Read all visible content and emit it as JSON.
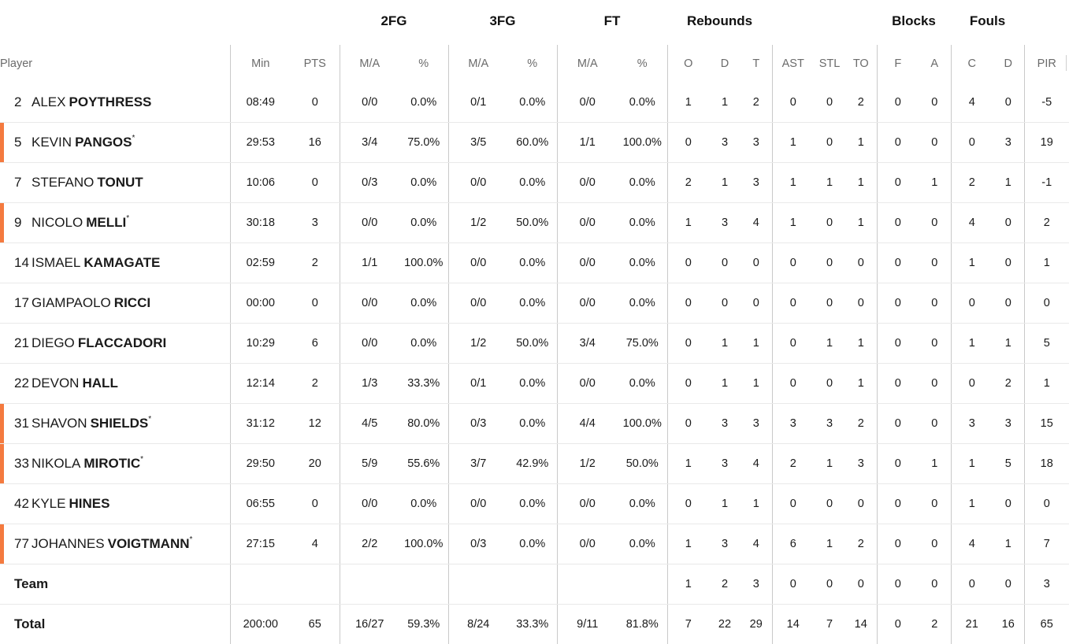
{
  "groups": {
    "fg2": "2FG",
    "fg3": "3FG",
    "ft": "FT",
    "rebounds": "Rebounds",
    "blocks": "Blocks",
    "fouls": "Fouls"
  },
  "columns": {
    "player": "Player",
    "min": "Min",
    "pts": "PTS",
    "fg2_ma": "M/A",
    "fg2_pct": "%",
    "fg3_ma": "M/A",
    "fg3_pct": "%",
    "ft_ma": "M/A",
    "ft_pct": "%",
    "reb_o": "O",
    "reb_d": "D",
    "reb_t": "T",
    "ast": "AST",
    "stl": "STL",
    "to": "TO",
    "blk_f": "F",
    "blk_a": "A",
    "foul_c": "C",
    "foul_d": "D",
    "pir": "PIR"
  },
  "players": [
    {
      "num": "2",
      "first": "ALEX",
      "last": "POYTHRESS",
      "starter": "",
      "min": "08:49",
      "pts": "0",
      "fg2_ma": "0/0",
      "fg2_pct": "0.0%",
      "fg3_ma": "0/1",
      "fg3_pct": "0.0%",
      "ft_ma": "0/0",
      "ft_pct": "0.0%",
      "reb_o": "1",
      "reb_d": "1",
      "reb_t": "2",
      "ast": "0",
      "stl": "0",
      "to": "2",
      "blk_f": "0",
      "blk_a": "0",
      "foul_c": "4",
      "foul_d": "0",
      "pir": "-5"
    },
    {
      "num": "5",
      "first": "KEVIN",
      "last": "PANGOS",
      "starter": "*",
      "min": "29:53",
      "pts": "16",
      "fg2_ma": "3/4",
      "fg2_pct": "75.0%",
      "fg3_ma": "3/5",
      "fg3_pct": "60.0%",
      "ft_ma": "1/1",
      "ft_pct": "100.0%",
      "reb_o": "0",
      "reb_d": "3",
      "reb_t": "3",
      "ast": "1",
      "stl": "0",
      "to": "1",
      "blk_f": "0",
      "blk_a": "0",
      "foul_c": "0",
      "foul_d": "3",
      "pir": "19"
    },
    {
      "num": "7",
      "first": "STEFANO",
      "last": "TONUT",
      "starter": "",
      "min": "10:06",
      "pts": "0",
      "fg2_ma": "0/3",
      "fg2_pct": "0.0%",
      "fg3_ma": "0/0",
      "fg3_pct": "0.0%",
      "ft_ma": "0/0",
      "ft_pct": "0.0%",
      "reb_o": "2",
      "reb_d": "1",
      "reb_t": "3",
      "ast": "1",
      "stl": "1",
      "to": "1",
      "blk_f": "0",
      "blk_a": "1",
      "foul_c": "2",
      "foul_d": "1",
      "pir": "-1"
    },
    {
      "num": "9",
      "first": "NICOLO",
      "last": "MELLI",
      "starter": "*",
      "min": "30:18",
      "pts": "3",
      "fg2_ma": "0/0",
      "fg2_pct": "0.0%",
      "fg3_ma": "1/2",
      "fg3_pct": "50.0%",
      "ft_ma": "0/0",
      "ft_pct": "0.0%",
      "reb_o": "1",
      "reb_d": "3",
      "reb_t": "4",
      "ast": "1",
      "stl": "0",
      "to": "1",
      "blk_f": "0",
      "blk_a": "0",
      "foul_c": "4",
      "foul_d": "0",
      "pir": "2"
    },
    {
      "num": "14",
      "first": "ISMAEL",
      "last": "KAMAGATE",
      "starter": "",
      "min": "02:59",
      "pts": "2",
      "fg2_ma": "1/1",
      "fg2_pct": "100.0%",
      "fg3_ma": "0/0",
      "fg3_pct": "0.0%",
      "ft_ma": "0/0",
      "ft_pct": "0.0%",
      "reb_o": "0",
      "reb_d": "0",
      "reb_t": "0",
      "ast": "0",
      "stl": "0",
      "to": "0",
      "blk_f": "0",
      "blk_a": "0",
      "foul_c": "1",
      "foul_d": "0",
      "pir": "1"
    },
    {
      "num": "17",
      "first": "GIAMPAOLO",
      "last": "RICCI",
      "starter": "",
      "min": "00:00",
      "pts": "0",
      "fg2_ma": "0/0",
      "fg2_pct": "0.0%",
      "fg3_ma": "0/0",
      "fg3_pct": "0.0%",
      "ft_ma": "0/0",
      "ft_pct": "0.0%",
      "reb_o": "0",
      "reb_d": "0",
      "reb_t": "0",
      "ast": "0",
      "stl": "0",
      "to": "0",
      "blk_f": "0",
      "blk_a": "0",
      "foul_c": "0",
      "foul_d": "0",
      "pir": "0"
    },
    {
      "num": "21",
      "first": "DIEGO",
      "last": "FLACCADORI",
      "starter": "",
      "min": "10:29",
      "pts": "6",
      "fg2_ma": "0/0",
      "fg2_pct": "0.0%",
      "fg3_ma": "1/2",
      "fg3_pct": "50.0%",
      "ft_ma": "3/4",
      "ft_pct": "75.0%",
      "reb_o": "0",
      "reb_d": "1",
      "reb_t": "1",
      "ast": "0",
      "stl": "1",
      "to": "1",
      "blk_f": "0",
      "blk_a": "0",
      "foul_c": "1",
      "foul_d": "1",
      "pir": "5"
    },
    {
      "num": "22",
      "first": "DEVON",
      "last": "HALL",
      "starter": "",
      "min": "12:14",
      "pts": "2",
      "fg2_ma": "1/3",
      "fg2_pct": "33.3%",
      "fg3_ma": "0/1",
      "fg3_pct": "0.0%",
      "ft_ma": "0/0",
      "ft_pct": "0.0%",
      "reb_o": "0",
      "reb_d": "1",
      "reb_t": "1",
      "ast": "0",
      "stl": "0",
      "to": "1",
      "blk_f": "0",
      "blk_a": "0",
      "foul_c": "0",
      "foul_d": "2",
      "pir": "1"
    },
    {
      "num": "31",
      "first": "SHAVON",
      "last": "SHIELDS",
      "starter": "*",
      "min": "31:12",
      "pts": "12",
      "fg2_ma": "4/5",
      "fg2_pct": "80.0%",
      "fg3_ma": "0/3",
      "fg3_pct": "0.0%",
      "ft_ma": "4/4",
      "ft_pct": "100.0%",
      "reb_o": "0",
      "reb_d": "3",
      "reb_t": "3",
      "ast": "3",
      "stl": "3",
      "to": "2",
      "blk_f": "0",
      "blk_a": "0",
      "foul_c": "3",
      "foul_d": "3",
      "pir": "15"
    },
    {
      "num": "33",
      "first": "NIKOLA",
      "last": "MIROTIC",
      "starter": "*",
      "min": "29:50",
      "pts": "20",
      "fg2_ma": "5/9",
      "fg2_pct": "55.6%",
      "fg3_ma": "3/7",
      "fg3_pct": "42.9%",
      "ft_ma": "1/2",
      "ft_pct": "50.0%",
      "reb_o": "1",
      "reb_d": "3",
      "reb_t": "4",
      "ast": "2",
      "stl": "1",
      "to": "3",
      "blk_f": "0",
      "blk_a": "1",
      "foul_c": "1",
      "foul_d": "5",
      "pir": "18"
    },
    {
      "num": "42",
      "first": "KYLE",
      "last": "HINES",
      "starter": "",
      "min": "06:55",
      "pts": "0",
      "fg2_ma": "0/0",
      "fg2_pct": "0.0%",
      "fg3_ma": "0/0",
      "fg3_pct": "0.0%",
      "ft_ma": "0/0",
      "ft_pct": "0.0%",
      "reb_o": "0",
      "reb_d": "1",
      "reb_t": "1",
      "ast": "0",
      "stl": "0",
      "to": "0",
      "blk_f": "0",
      "blk_a": "0",
      "foul_c": "1",
      "foul_d": "0",
      "pir": "0"
    },
    {
      "num": "77",
      "first": "JOHANNES",
      "last": "VOIGTMANN",
      "starter": "*",
      "min": "27:15",
      "pts": "4",
      "fg2_ma": "2/2",
      "fg2_pct": "100.0%",
      "fg3_ma": "0/3",
      "fg3_pct": "0.0%",
      "ft_ma": "0/0",
      "ft_pct": "0.0%",
      "reb_o": "1",
      "reb_d": "3",
      "reb_t": "4",
      "ast": "6",
      "stl": "1",
      "to": "2",
      "blk_f": "0",
      "blk_a": "0",
      "foul_c": "4",
      "foul_d": "1",
      "pir": "7"
    }
  ],
  "team": {
    "label": "Team",
    "min": "",
    "pts": "",
    "fg2_ma": "",
    "fg2_pct": "",
    "fg3_ma": "",
    "fg3_pct": "",
    "ft_ma": "",
    "ft_pct": "",
    "reb_o": "1",
    "reb_d": "2",
    "reb_t": "3",
    "ast": "0",
    "stl": "0",
    "to": "0",
    "blk_f": "0",
    "blk_a": "0",
    "foul_c": "0",
    "foul_d": "0",
    "pir": "3"
  },
  "total": {
    "label": "Total",
    "min": "200:00",
    "pts": "65",
    "fg2_ma": "16/27",
    "fg2_pct": "59.3%",
    "fg3_ma": "8/24",
    "fg3_pct": "33.3%",
    "ft_ma": "9/11",
    "ft_pct": "81.8%",
    "reb_o": "7",
    "reb_d": "22",
    "reb_t": "29",
    "ast": "14",
    "stl": "7",
    "to": "14",
    "blk_f": "0",
    "blk_a": "2",
    "foul_c": "21",
    "foul_d": "16",
    "pir": "65"
  },
  "colors": {
    "starter_bar": "#f47a3f",
    "divider": "#c9c9c9",
    "row_line": "#e9e9e9",
    "header_text": "#6b6b6b"
  }
}
